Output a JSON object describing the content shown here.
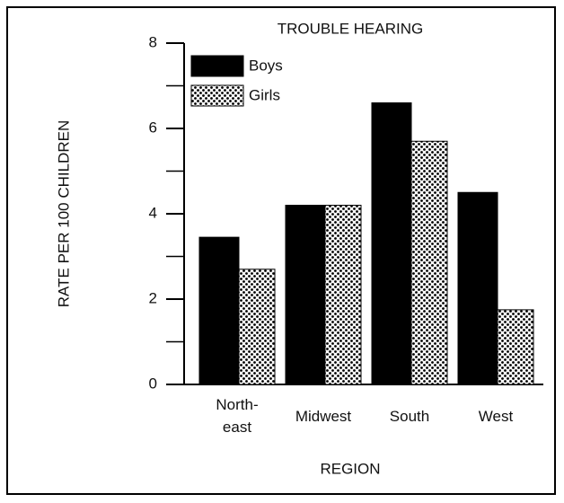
{
  "chart_data": {
    "type": "bar",
    "title": "TROUBLE HEARING",
    "xlabel": "REGION",
    "ylabel": "RATE PER 100 CHILDREN",
    "categories": [
      "North-\neast",
      "Midwest",
      "South",
      "West"
    ],
    "series": [
      {
        "name": "Boys",
        "color": "#000000",
        "values": [
          3.45,
          4.2,
          6.6,
          4.5
        ]
      },
      {
        "name": "Girls",
        "color": "dotted",
        "values": [
          2.7,
          4.2,
          5.7,
          1.75
        ]
      }
    ],
    "ylim": [
      0,
      8
    ],
    "yticks": [
      0,
      2,
      4,
      6,
      8
    ],
    "yminorticks": [
      1,
      3,
      5,
      7
    ],
    "legend": "upper left"
  }
}
